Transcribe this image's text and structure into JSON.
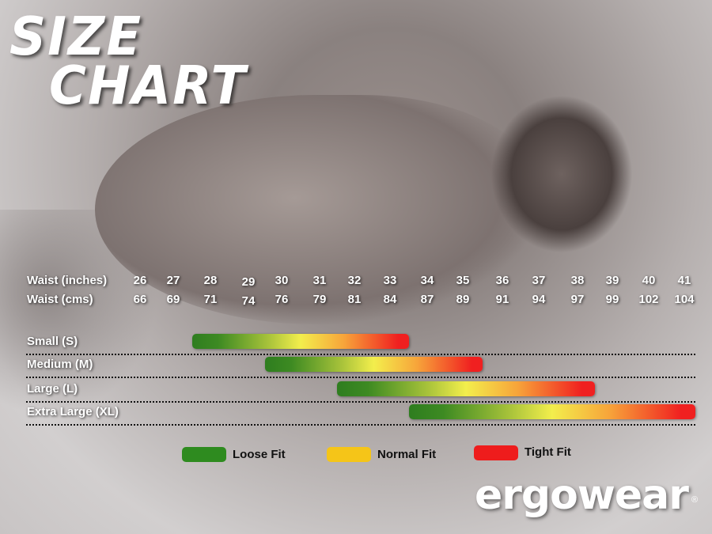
{
  "title": {
    "line1": "SIZE",
    "line2": "CHART"
  },
  "chart_data": {
    "type": "range-bar",
    "x_rows": [
      {
        "label": "Waist (inches)",
        "values": [
          26,
          27,
          28,
          29,
          30,
          31,
          32,
          33,
          34,
          35,
          36,
          37,
          38,
          39,
          40,
          41
        ]
      },
      {
        "label": "Waist (cms)",
        "values": [
          66,
          69,
          71,
          74,
          76,
          79,
          81,
          84,
          87,
          89,
          91,
          94,
          97,
          99,
          102,
          104
        ]
      }
    ],
    "series": [
      {
        "name": "Small (S)",
        "from": 27.5,
        "to": 33.5
      },
      {
        "name": "Medium (M)",
        "from": 29.5,
        "to": 35.5
      },
      {
        "name": "Large (L)",
        "from": 31.5,
        "to": 38.5
      },
      {
        "name": "Extra Large (XL)",
        "from": 33.5,
        "to": 41.3
      }
    ],
    "legend": [
      {
        "label": "Loose Fit",
        "color": "#2e8b1f"
      },
      {
        "label": "Normal Fit",
        "color": "#f5c518"
      },
      {
        "label": "Tight Fit",
        "color": "#ee1c1c"
      }
    ]
  },
  "logo": {
    "text": "ergowear",
    "mark": "®"
  }
}
